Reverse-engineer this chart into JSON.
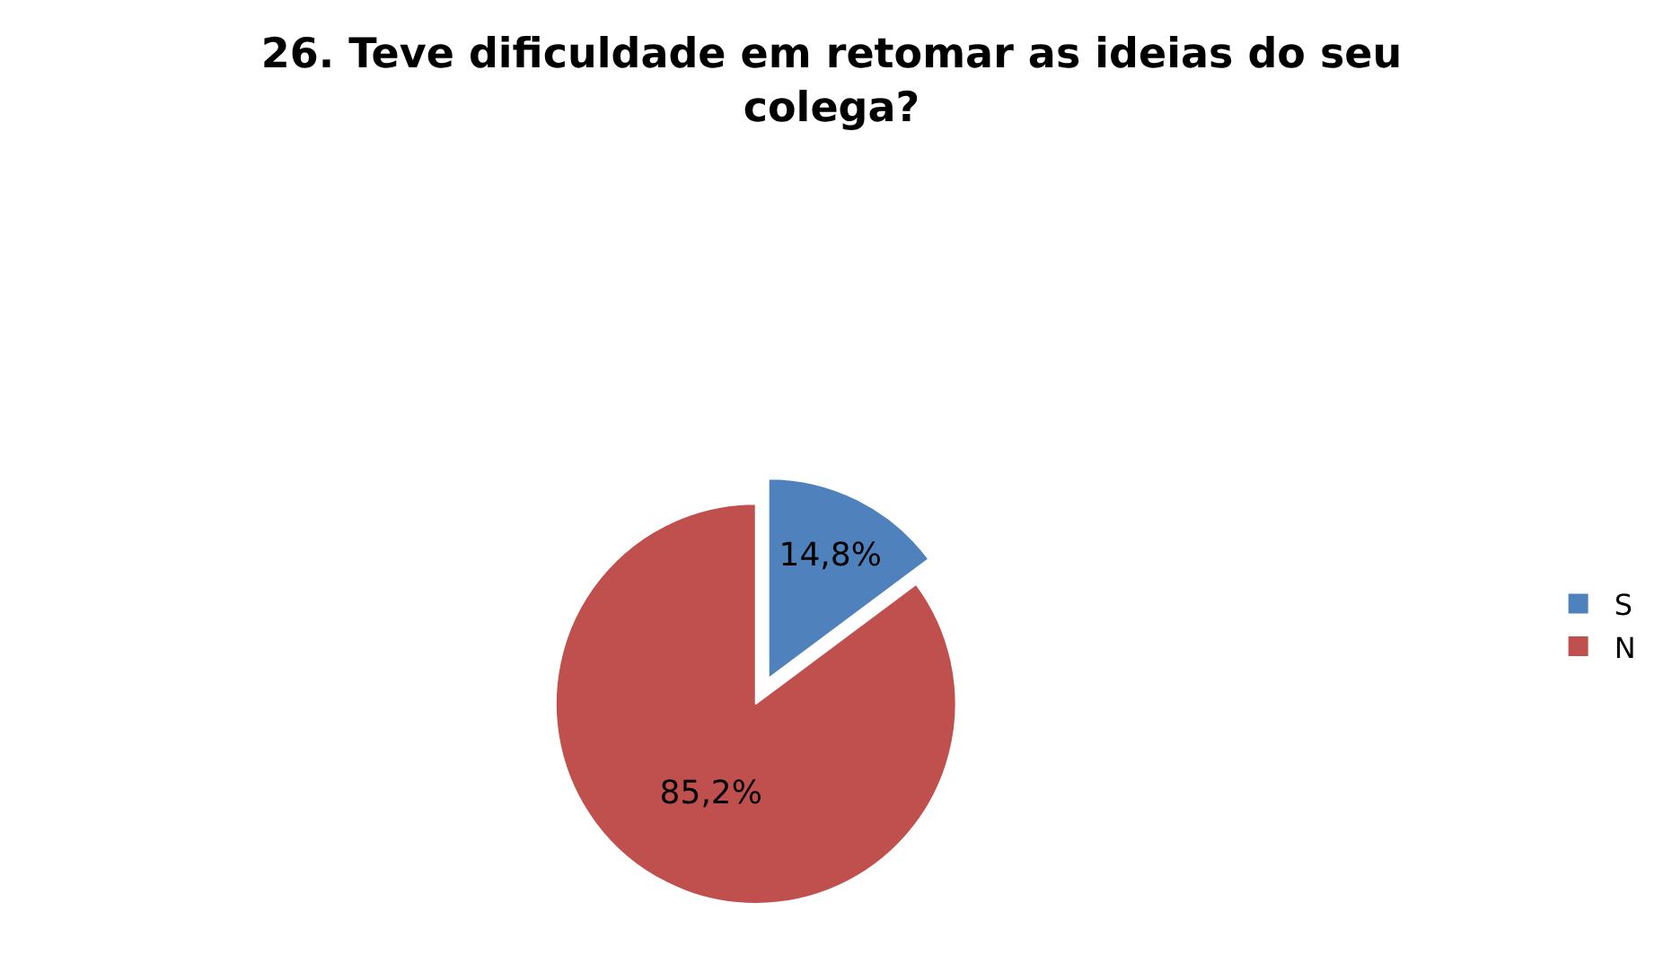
{
  "chart_data": {
    "type": "pie",
    "title": "26. Teve dificuldade em retomar as ideias do seu colega?",
    "categories": [
      "S",
      "N"
    ],
    "values": [
      14.8,
      85.2
    ],
    "value_labels": [
      "14,8%",
      "85,2%"
    ],
    "colors": [
      "#4f81bd",
      "#c0504d"
    ],
    "legend": "right"
  }
}
